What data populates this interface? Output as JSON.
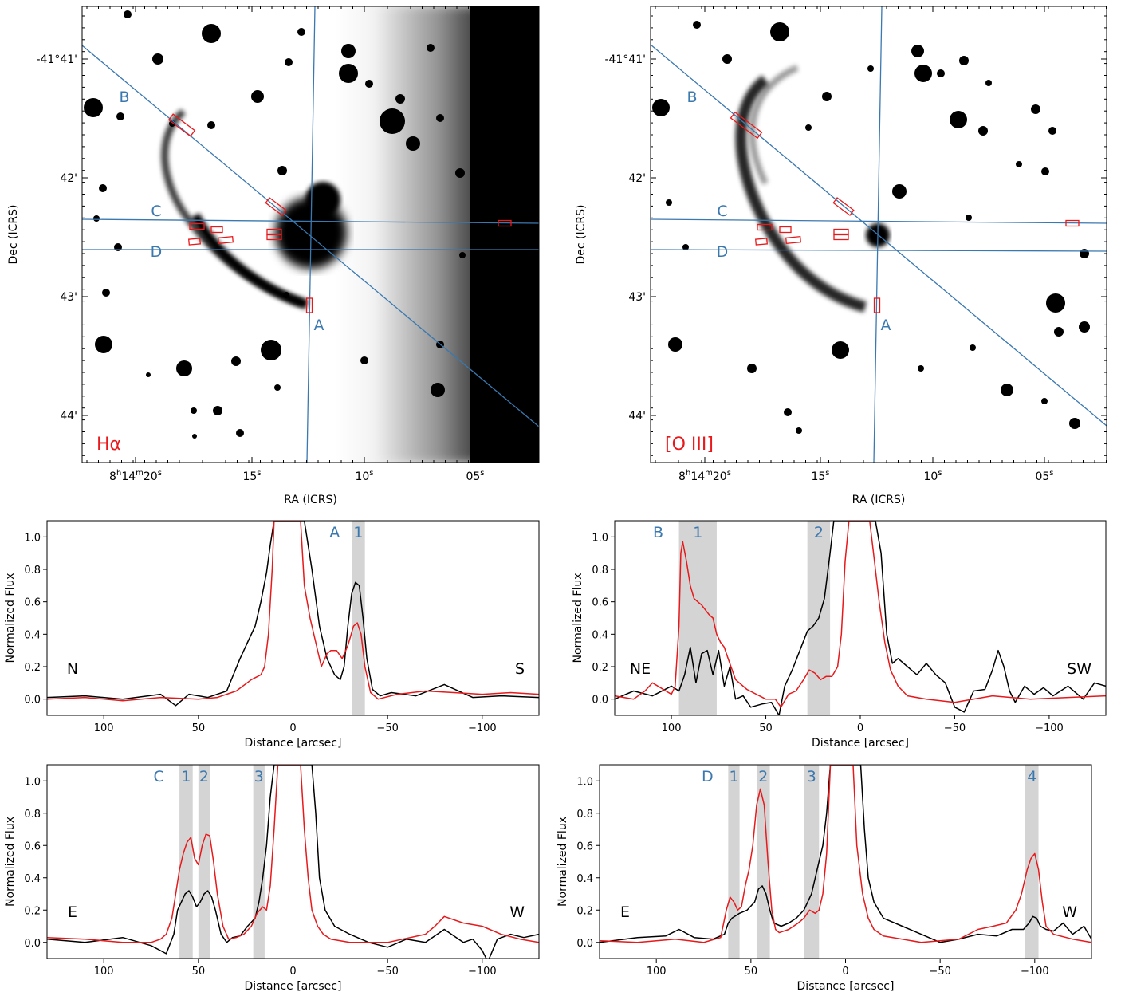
{
  "images": [
    {
      "id": "ha",
      "filter_label": "Hα",
      "xlabel": "RA (ICRS)",
      "ylabel": "Dec (ICRS)",
      "ra_ticks": [
        "8h14m20s",
        "15s",
        "10s",
        "05s"
      ],
      "dec_ticks": [
        "-41°41'",
        "42'",
        "43'",
        "44'"
      ],
      "slit_labels": [
        "A",
        "B",
        "C",
        "D"
      ]
    },
    {
      "id": "oiii",
      "filter_label": "[O III]",
      "xlabel": "RA (ICRS)",
      "ylabel": "Dec (ICRS)",
      "ra_ticks": [
        "8h14m20s",
        "15s",
        "10s",
        "05s"
      ],
      "dec_ticks": [
        "-41°41'",
        "42'",
        "43'",
        "44'"
      ],
      "slit_labels": [
        "A",
        "B",
        "C",
        "D"
      ]
    }
  ],
  "colors": {
    "halpha": "#e8191b",
    "oiii": "#000000",
    "slit": "#3a78b0",
    "label_blue": "#3a78b0",
    "label_red": "#e8191b",
    "band": "#d4d4d4"
  },
  "chart_data": [
    {
      "type": "line",
      "panel": "A",
      "xlabel": "Distance [arcsec]",
      "ylabel": "Normalized Flux",
      "xlim": [
        130,
        -130
      ],
      "ylim": [
        -0.1,
        1.1
      ],
      "xticks": [
        100,
        50,
        0,
        -50,
        -100
      ],
      "yticks": [
        0.0,
        0.2,
        0.4,
        0.6,
        0.8,
        1.0
      ],
      "slit_label": "A",
      "direction_left": "N",
      "direction_right": "S",
      "bands": [
        {
          "label": "1",
          "from": -31,
          "to": -38
        }
      ],
      "series": [
        {
          "color": "black",
          "x": [
            130,
            110,
            90,
            70,
            62,
            55,
            45,
            35,
            28,
            24,
            20,
            17,
            14,
            12,
            10,
            8,
            -6,
            -10,
            -14,
            -18,
            -22,
            -25,
            -27,
            -29,
            -31,
            -33,
            -35,
            -37,
            -39,
            -42,
            -46,
            -52,
            -65,
            -80,
            -95,
            -110,
            -130
          ],
          "y": [
            0.01,
            0.02,
            0.0,
            0.03,
            -0.04,
            0.03,
            0.01,
            0.05,
            0.25,
            0.35,
            0.45,
            0.6,
            0.78,
            0.95,
            1.1,
            1.1,
            1.1,
            0.8,
            0.45,
            0.25,
            0.15,
            0.12,
            0.2,
            0.45,
            0.65,
            0.72,
            0.7,
            0.5,
            0.25,
            0.06,
            0.02,
            0.04,
            0.02,
            0.09,
            0.01,
            0.02,
            0.01
          ]
        },
        {
          "color": "red",
          "x": [
            130,
            110,
            90,
            70,
            50,
            40,
            30,
            22,
            17,
            15,
            13,
            11,
            10,
            8,
            6,
            -4,
            -6,
            -9,
            -12,
            -15,
            -18,
            -20,
            -23,
            -26,
            -29,
            -32,
            -34,
            -36,
            -38,
            -41,
            -45,
            -55,
            -70,
            -85,
            -100,
            -115,
            -130
          ],
          "y": [
            0.0,
            0.01,
            -0.01,
            0.01,
            0.0,
            0.01,
            0.05,
            0.12,
            0.15,
            0.2,
            0.4,
            0.8,
            1.1,
            1.1,
            1.1,
            1.1,
            0.7,
            0.5,
            0.35,
            0.2,
            0.28,
            0.3,
            0.3,
            0.25,
            0.33,
            0.45,
            0.47,
            0.4,
            0.2,
            0.04,
            0.0,
            0.03,
            0.05,
            0.04,
            0.03,
            0.04,
            0.03
          ]
        }
      ]
    },
    {
      "type": "line",
      "panel": "B",
      "xlabel": "Distance [arcsec]",
      "ylabel": "Normalized Flux",
      "xlim": [
        130,
        -130
      ],
      "ylim": [
        -0.1,
        1.1
      ],
      "xticks": [
        100,
        50,
        0,
        -50,
        -100
      ],
      "yticks": [
        0.0,
        0.2,
        0.4,
        0.6,
        0.8,
        1.0
      ],
      "slit_label": "B",
      "direction_left": "NE",
      "direction_right": "SW",
      "bands": [
        {
          "label": "1",
          "from": 96,
          "to": 76
        },
        {
          "label": "2",
          "from": 28,
          "to": 16
        }
      ],
      "series": [
        {
          "color": "black",
          "x": [
            130,
            120,
            110,
            100,
            96,
            93,
            90,
            87,
            84,
            81,
            78,
            75,
            72,
            69,
            66,
            62,
            58,
            52,
            47,
            43,
            40,
            36,
            32,
            28,
            25,
            22,
            19,
            16,
            14,
            12,
            10,
            8,
            6,
            -5,
            -8,
            -11,
            -14,
            -17,
            -20,
            -25,
            -30,
            -35,
            -40,
            -45,
            -50,
            -55,
            -60,
            -66,
            -70,
            -73,
            -76,
            -79,
            -82,
            -87,
            -92,
            -97,
            -102,
            -110,
            -118,
            -124,
            -130
          ],
          "y": [
            0.0,
            0.05,
            0.02,
            0.08,
            0.05,
            0.15,
            0.32,
            0.1,
            0.28,
            0.3,
            0.15,
            0.3,
            0.08,
            0.2,
            0.0,
            0.02,
            -0.05,
            -0.03,
            -0.02,
            -0.1,
            0.08,
            0.18,
            0.3,
            0.42,
            0.45,
            0.5,
            0.62,
            0.9,
            1.1,
            1.1,
            1.1,
            1.1,
            1.1,
            1.1,
            1.1,
            0.9,
            0.4,
            0.22,
            0.25,
            0.2,
            0.15,
            0.22,
            0.15,
            0.1,
            -0.05,
            -0.08,
            0.05,
            0.06,
            0.18,
            0.3,
            0.2,
            0.05,
            -0.02,
            0.08,
            0.03,
            0.07,
            0.02,
            0.08,
            0.0,
            0.1,
            0.08
          ]
        },
        {
          "color": "red",
          "x": [
            130,
            120,
            114,
            110,
            100,
            98,
            96,
            95,
            94,
            92,
            90,
            88,
            86,
            84,
            82,
            80,
            78,
            76,
            74,
            72,
            70,
            66,
            60,
            50,
            45,
            42,
            38,
            34,
            30,
            27,
            24,
            21,
            18,
            15,
            12,
            10,
            8,
            6,
            -5,
            -7,
            -10,
            -13,
            -16,
            -20,
            -25,
            -35,
            -50,
            -70,
            -90,
            -110,
            -130
          ],
          "y": [
            0.02,
            0.0,
            0.05,
            0.1,
            0.03,
            0.08,
            0.45,
            0.9,
            0.97,
            0.85,
            0.7,
            0.62,
            0.6,
            0.58,
            0.55,
            0.52,
            0.5,
            0.4,
            0.35,
            0.32,
            0.25,
            0.12,
            0.06,
            0.0,
            0.0,
            -0.05,
            0.03,
            0.05,
            0.12,
            0.18,
            0.16,
            0.12,
            0.14,
            0.14,
            0.2,
            0.4,
            0.85,
            1.1,
            1.1,
            0.9,
            0.6,
            0.35,
            0.18,
            0.08,
            0.02,
            0.0,
            -0.02,
            0.02,
            0.0,
            0.01,
            0.02
          ]
        }
      ]
    },
    {
      "type": "line",
      "panel": "C",
      "xlabel": "Distance [arcsec]",
      "ylabel": "Normalized Flux",
      "xlim": [
        130,
        -130
      ],
      "ylim": [
        -0.1,
        1.1
      ],
      "xticks": [
        100,
        50,
        0,
        -50,
        -100
      ],
      "yticks": [
        0.0,
        0.2,
        0.4,
        0.6,
        0.8,
        1.0
      ],
      "slit_label": "C",
      "direction_left": "E",
      "direction_right": "W",
      "bands": [
        {
          "label": "1",
          "from": 60,
          "to": 53
        },
        {
          "label": "2",
          "from": 50,
          "to": 44
        },
        {
          "label": "3",
          "from": 21,
          "to": 15
        }
      ],
      "series": [
        {
          "color": "black",
          "x": [
            130,
            110,
            90,
            75,
            67,
            63,
            61,
            59,
            57,
            55,
            53,
            51,
            49,
            47,
            45,
            43,
            41,
            38,
            35,
            32,
            28,
            24,
            20,
            18,
            16,
            14,
            12,
            10,
            8,
            -10,
            -12,
            -14,
            -17,
            -22,
            -30,
            -40,
            -50,
            -60,
            -70,
            -80,
            -90,
            -95,
            -100,
            -103,
            -108,
            -115,
            -122,
            -130
          ],
          "y": [
            0.02,
            0.0,
            0.03,
            -0.02,
            -0.07,
            0.05,
            0.2,
            0.25,
            0.3,
            0.32,
            0.28,
            0.22,
            0.25,
            0.3,
            0.32,
            0.28,
            0.2,
            0.05,
            0.0,
            0.03,
            0.04,
            0.1,
            0.15,
            0.25,
            0.4,
            0.6,
            0.9,
            1.1,
            1.1,
            1.1,
            0.8,
            0.4,
            0.2,
            0.1,
            0.05,
            0.0,
            -0.03,
            0.02,
            0.0,
            0.08,
            0.0,
            0.02,
            -0.05,
            -0.12,
            0.02,
            0.05,
            0.03,
            0.05
          ]
        },
        {
          "color": "red",
          "x": [
            130,
            110,
            90,
            75,
            70,
            67,
            64,
            62,
            60,
            58,
            56,
            54,
            52,
            50,
            48,
            46,
            44,
            42,
            40,
            37,
            34,
            30,
            26,
            22,
            19,
            16,
            14,
            12,
            10,
            8,
            6,
            4,
            -4,
            -6,
            -8,
            -10,
            -13,
            -16,
            -20,
            -30,
            -50,
            -70,
            -75,
            -80,
            -90,
            -100,
            -110,
            -120,
            -130
          ],
          "y": [
            0.03,
            0.02,
            0.0,
            0.0,
            0.02,
            0.05,
            0.15,
            0.3,
            0.45,
            0.55,
            0.62,
            0.65,
            0.52,
            0.48,
            0.6,
            0.67,
            0.66,
            0.5,
            0.3,
            0.1,
            0.02,
            0.03,
            0.05,
            0.1,
            0.18,
            0.22,
            0.2,
            0.35,
            0.7,
            1.1,
            1.1,
            1.1,
            1.1,
            0.7,
            0.4,
            0.2,
            0.1,
            0.05,
            0.02,
            0.0,
            0.0,
            0.05,
            0.1,
            0.16,
            0.12,
            0.1,
            0.05,
            0.02,
            0.0
          ]
        }
      ]
    },
    {
      "type": "line",
      "panel": "D",
      "xlabel": "Distance [arcsec]",
      "ylabel": "Normalized Flux",
      "xlim": [
        130,
        -130
      ],
      "ylim": [
        -0.1,
        1.1
      ],
      "xticks": [
        100,
        50,
        0,
        -50,
        -100
      ],
      "yticks": [
        0.0,
        0.2,
        0.4,
        0.6,
        0.8,
        1.0
      ],
      "slit_label": "D",
      "direction_left": "E",
      "direction_right": "W",
      "bands": [
        {
          "label": "1",
          "from": 62,
          "to": 56
        },
        {
          "label": "2",
          "from": 47,
          "to": 40
        },
        {
          "label": "3",
          "from": 22,
          "to": 14
        },
        {
          "label": "4",
          "from": -95,
          "to": -102
        }
      ],
      "series": [
        {
          "color": "black",
          "x": [
            130,
            110,
            95,
            88,
            80,
            70,
            64,
            62,
            60,
            56,
            52,
            48,
            46,
            44,
            42,
            40,
            38,
            34,
            30,
            26,
            22,
            18,
            15,
            12,
            10,
            8,
            6,
            4,
            -8,
            -10,
            -12,
            -15,
            -20,
            -30,
            -40,
            -50,
            -60,
            -70,
            -80,
            -88,
            -94,
            -97,
            -99,
            -101,
            -103,
            -106,
            -110,
            -115,
            -120,
            -126,
            -130
          ],
          "y": [
            0.0,
            0.03,
            0.04,
            0.08,
            0.03,
            0.02,
            0.05,
            0.12,
            0.15,
            0.18,
            0.2,
            0.25,
            0.33,
            0.35,
            0.3,
            0.2,
            0.12,
            0.1,
            0.12,
            0.15,
            0.2,
            0.3,
            0.45,
            0.6,
            0.8,
            1.1,
            1.1,
            1.1,
            1.1,
            0.7,
            0.4,
            0.25,
            0.15,
            0.1,
            0.05,
            0.0,
            0.02,
            0.05,
            0.04,
            0.08,
            0.08,
            0.12,
            0.16,
            0.15,
            0.1,
            0.08,
            0.07,
            0.12,
            0.05,
            0.1,
            0.02
          ]
        },
        {
          "color": "red",
          "x": [
            130,
            110,
            90,
            75,
            66,
            63,
            61,
            59,
            57,
            55,
            53,
            51,
            49,
            47,
            45,
            43,
            41,
            39,
            37,
            35,
            30,
            25,
            22,
            19,
            16,
            14,
            12,
            10,
            8,
            6,
            4,
            -4,
            -6,
            -9,
            -12,
            -15,
            -20,
            -40,
            -60,
            -70,
            -78,
            -85,
            -90,
            -93,
            -96,
            -98,
            -100,
            -102,
            -104,
            -106,
            -110,
            -120,
            -130
          ],
          "y": [
            0.01,
            0.0,
            0.02,
            0.0,
            0.03,
            0.2,
            0.28,
            0.25,
            0.2,
            0.22,
            0.35,
            0.45,
            0.6,
            0.85,
            0.95,
            0.85,
            0.5,
            0.2,
            0.08,
            0.06,
            0.08,
            0.12,
            0.15,
            0.2,
            0.18,
            0.2,
            0.3,
            0.55,
            1.1,
            1.1,
            1.1,
            1.1,
            0.6,
            0.3,
            0.15,
            0.08,
            0.04,
            0.0,
            0.02,
            0.08,
            0.1,
            0.12,
            0.2,
            0.3,
            0.45,
            0.52,
            0.55,
            0.45,
            0.25,
            0.1,
            0.05,
            0.02,
            0.0
          ]
        }
      ]
    }
  ]
}
